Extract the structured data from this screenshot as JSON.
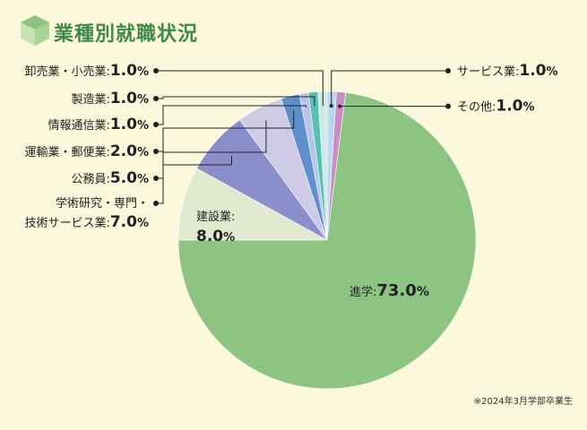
{
  "header": {
    "title": "業種別就職状況"
  },
  "footer": {
    "note": "※2024年3月学部卒業生"
  },
  "colors": {
    "accent": "#3e8a45",
    "background": "#fbf8dc"
  },
  "chart_data": {
    "type": "pie",
    "unit": "%",
    "slices": [
      {
        "label": "サービス業",
        "value": 1.0,
        "color": "#b9d8f0"
      },
      {
        "label": "その他",
        "value": 1.0,
        "color": "#c98fc3"
      },
      {
        "label": "進学",
        "value": 73.0,
        "color": "#8dc482"
      },
      {
        "label": "建設業",
        "value": 8.0,
        "color": "#e1eacf"
      },
      {
        "label": "学術研究・専門・技術サービス業",
        "value": 7.0,
        "color": "#8a8fcb"
      },
      {
        "label": "公務員",
        "value": 5.0,
        "color": "#cdcbe6"
      },
      {
        "label": "運輸業・郵便業",
        "value": 2.0,
        "color": "#5f8fcc"
      },
      {
        "label": "情報通信業",
        "value": 1.0,
        "color": "#b8c4e8"
      },
      {
        "label": "製造業",
        "value": 1.0,
        "color": "#55c0b4"
      },
      {
        "label": "卸売業・小売業",
        "value": 1.0,
        "color": "#cfe8e2"
      }
    ],
    "labels": {
      "service": {
        "text": "サービス業:",
        "value": "1.0",
        "unit": "%"
      },
      "other": {
        "text": "その他:",
        "value": "1.0",
        "unit": "%"
      },
      "shingaku": {
        "text": "進学:",
        "value": "73.0",
        "unit": "%"
      },
      "kensetsu": {
        "text": "建設業:",
        "value": "8.0",
        "unit": "%"
      },
      "gakujutsu": {
        "line1": "学術研究・専門・",
        "text": "技術サービス業:",
        "value": "7.0",
        "unit": "%"
      },
      "koumuin": {
        "text": "公務員:",
        "value": "5.0",
        "unit": "%"
      },
      "unyu": {
        "text": "運輸業・郵便業:",
        "value": "2.0",
        "unit": "%"
      },
      "joho": {
        "text": "情報通信業:",
        "value": "1.0",
        "unit": "%"
      },
      "seizo": {
        "text": "製造業:",
        "value": "1.0",
        "unit": "%"
      },
      "oroshi": {
        "text": "卸売業・小売業:",
        "value": "1.0",
        "unit": "%"
      }
    }
  }
}
